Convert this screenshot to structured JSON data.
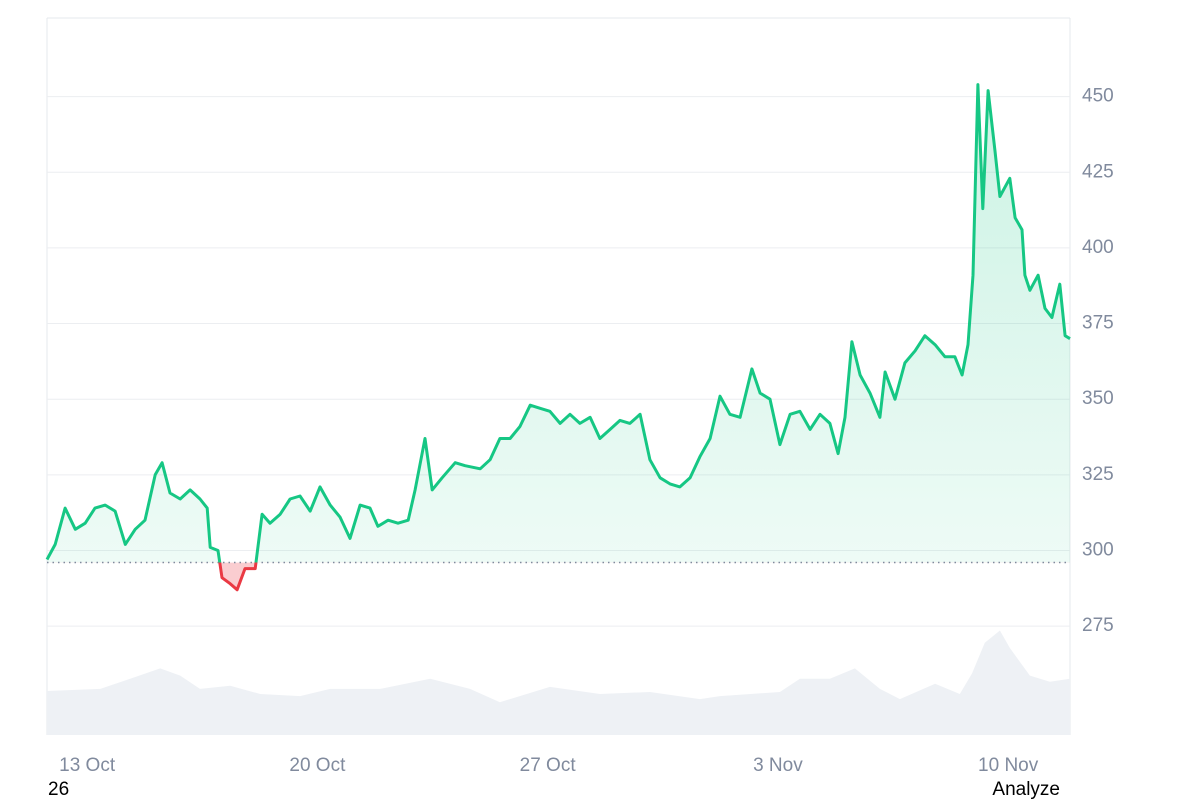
{
  "chart_data": {
    "type": "line",
    "x": [
      -1.22,
      -0.97,
      -0.67,
      -0.36,
      -0.06,
      0.24,
      0.55,
      0.85,
      1.16,
      1.46,
      1.76,
      2.07,
      2.28,
      2.52,
      2.83,
      3.13,
      3.43,
      3.65,
      3.74,
      3.98,
      4.1,
      4.35,
      4.56,
      4.8,
      5.11,
      5.32,
      5.56,
      5.87,
      6.17,
      6.47,
      6.78,
      7.08,
      7.39,
      7.69,
      7.99,
      8.3,
      8.6,
      8.84,
      9.15,
      9.45,
      9.76,
      9.97,
      10.27,
      10.49,
      10.79,
      11.19,
      11.49,
      11.95,
      12.25,
      12.55,
      12.86,
      13.16,
      13.47,
      13.77,
      14.07,
      14.38,
      14.68,
      14.98,
      15.29,
      15.59,
      15.9,
      16.2,
      16.5,
      16.81,
      17.11,
      17.42,
      17.72,
      18.02,
      18.33,
      18.63,
      18.94,
      19.24,
      19.54,
      19.85,
      20.21,
      20.46,
      20.76,
      21.06,
      21.37,
      21.67,
      21.98,
      22.28,
      22.58,
      22.83,
      23.04,
      23.25,
      23.5,
      23.8,
      24.1,
      24.26,
      24.56,
      24.86,
      25.17,
      25.47,
      25.78,
      26.08,
      26.38,
      26.6,
      26.78,
      26.93,
      27.08,
      27.23,
      27.39,
      27.6,
      27.75,
      28.05,
      28.21,
      28.42,
      28.51,
      28.66,
      28.91,
      29.12,
      29.33,
      29.57,
      29.73,
      29.88
    ],
    "series": [
      {
        "color": "#16c784",
        "down_color": "#ea3943",
        "values": [
          297,
          302,
          314,
          307,
          309,
          314,
          315,
          313,
          302,
          307,
          310,
          325,
          329,
          319,
          317,
          320,
          317,
          314,
          301,
          300,
          291,
          289,
          287,
          294,
          294,
          312,
          309,
          312,
          317,
          318,
          313,
          321,
          315,
          311,
          304,
          315,
          314,
          308,
          310,
          309,
          310,
          320,
          337,
          320,
          324,
          329,
          328,
          327,
          330,
          337,
          337,
          341,
          348,
          347,
          346,
          342,
          345,
          342,
          344,
          337,
          340,
          343,
          342,
          345,
          330,
          324,
          322,
          321,
          324,
          331,
          337,
          351,
          345,
          344,
          360,
          352,
          350,
          335,
          345,
          346,
          340,
          345,
          342,
          332,
          344,
          369,
          358,
          352,
          344,
          359,
          350,
          362,
          366,
          371,
          368,
          364,
          364,
          358,
          368,
          391,
          454,
          413,
          452,
          432,
          417,
          423,
          410,
          406,
          391,
          386,
          391,
          380,
          377,
          388,
          371,
          370
        ]
      }
    ],
    "volume": {
      "color": "#eef1f5",
      "x": [
        -1.22,
        0.4,
        1.31,
        2.22,
        2.83,
        3.43,
        4.35,
        5.26,
        6.47,
        7.39,
        8.91,
        10.43,
        11.64,
        12.55,
        14.07,
        15.59,
        17.11,
        18.63,
        19.24,
        21.06,
        21.67,
        22.58,
        23.34,
        24.1,
        24.71,
        25.78,
        26.53,
        26.9,
        27.29,
        27.75,
        28.05,
        28.66,
        29.27,
        29.88
      ],
      "values": [
        43,
        45,
        55,
        65,
        58,
        45,
        48,
        40,
        38,
        45,
        45,
        55,
        45,
        32,
        47,
        40,
        42,
        35,
        38,
        42,
        55,
        55,
        65,
        45,
        35,
        50,
        40,
        60,
        90,
        102,
        85,
        58,
        52,
        55
      ],
      "axis": "y2"
    },
    "baseline": 296,
    "xlim": [
      -1.22,
      29.88
    ],
    "xticks": [
      {
        "value": 0,
        "label": "13 Oct"
      },
      {
        "value": 7,
        "label": "20 Oct"
      },
      {
        "value": 14,
        "label": "27 Oct"
      },
      {
        "value": 21,
        "label": "3 Nov"
      },
      {
        "value": 28,
        "label": "10 Nov"
      }
    ],
    "ylim": [
      239,
      476
    ],
    "yticks": [
      275,
      300,
      325,
      350,
      375,
      400,
      425,
      450
    ],
    "y2lim": [
      0,
      700
    ],
    "grid": true
  },
  "footer": {
    "left": "26",
    "right": "Analyze"
  }
}
